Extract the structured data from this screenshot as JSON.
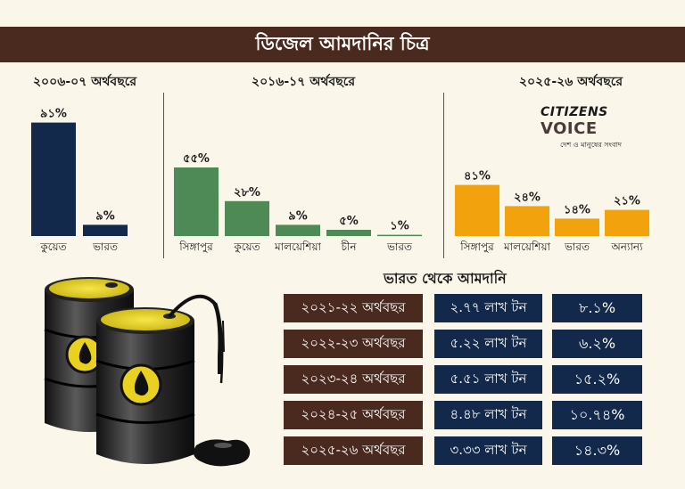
{
  "title": "ডিজেল আমদানির চিত্র",
  "logo": {
    "brand": "CITIZENS",
    "brand2": "VOICE",
    "tagline": "দেশ ও মানুষের সংবাদ"
  },
  "panels": [
    {
      "title": "২০০৬-০৭ অর্থবছরে"
    },
    {
      "title": "২০১৬-১৭ অর্থবছরে"
    },
    {
      "title": "২০২৫-২৬ অর্থবছরে"
    }
  ],
  "colors": {
    "panel1": "#13294b",
    "panel2": "#4d8a55",
    "panel3": "#f2a20c",
    "title_bg": "#4a2a1e",
    "navy": "#13294b"
  },
  "chart_data": [
    {
      "type": "bar",
      "title": "২০০৬-০৭ অর্থবছরে",
      "categories": [
        "কুয়েত",
        "ভারত"
      ],
      "values": [
        91,
        9
      ],
      "value_labels": [
        "৯১%",
        "৯%"
      ],
      "ylim": [
        0,
        100
      ]
    },
    {
      "type": "bar",
      "title": "২০১৬-১৭ অর্থবছরে",
      "categories": [
        "সিঙ্গাপুর",
        "কুয়েত",
        "মালয়েশিয়া",
        "চীন",
        "ভারত"
      ],
      "values": [
        55,
        28,
        9,
        5,
        1
      ],
      "value_labels": [
        "৫৫%",
        "২৮%",
        "৯%",
        "৫%",
        "১%"
      ],
      "ylim": [
        0,
        100
      ]
    },
    {
      "type": "bar",
      "title": "২০২৫-২৬ অর্থবছরে",
      "categories": [
        "সিঙ্গাপুর",
        "মালয়েশিয়া",
        "ভারত",
        "অন্যান্য"
      ],
      "values": [
        41,
        24,
        14,
        21
      ],
      "value_labels": [
        "৪১%",
        "২৪%",
        "১৪%",
        "২১%"
      ],
      "ylim": [
        0,
        100
      ]
    },
    {
      "type": "table",
      "title": "ভারত থেকে আমদানি",
      "rows": [
        {
          "year": "২০২১-২২ অর্থবছর",
          "qty": "২.৭৭ লাখ টন",
          "pct": "৮.১%"
        },
        {
          "year": "২০২২-২৩ অর্থবছর",
          "qty": "৫.২২ লাখ টন",
          "pct": "৬.২%"
        },
        {
          "year": "২০২৩-২৪ অর্থবছর",
          "qty": "৫.৫১ লাখ টন",
          "pct": "১৫.২%"
        },
        {
          "year": "২০২৪-২৫ অর্থবছর",
          "qty": "৪.৪৮ লাখ টন",
          "pct": "১০.৭৪%"
        },
        {
          "year": "২০২৫-২৬ অর্থবছর",
          "qty": "৩.৩৩ লাখ টন",
          "pct": "১৪.৩%"
        }
      ]
    }
  ]
}
